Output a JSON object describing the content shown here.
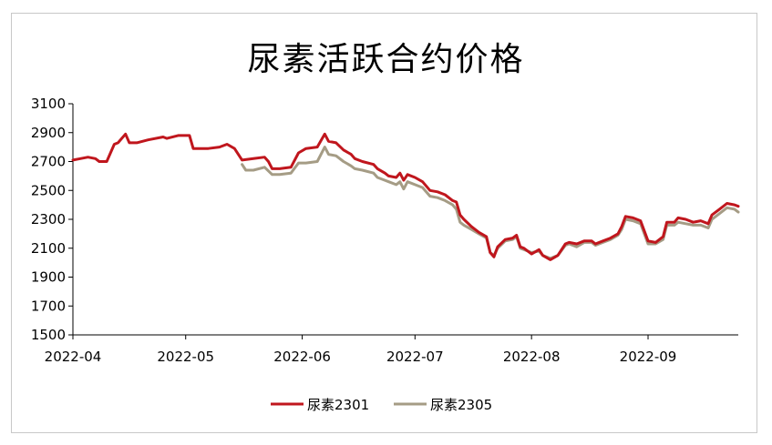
{
  "chart_data": {
    "type": "line",
    "title": "尿素活跃合约价格",
    "xlabel": "",
    "ylabel": "",
    "ylim": [
      1500,
      3100
    ],
    "yticks": [
      1500,
      1700,
      1900,
      2100,
      2300,
      2500,
      2700,
      2900,
      3100
    ],
    "xlim": [
      "2022-04-01",
      "2022-09-25"
    ],
    "xticks": [
      {
        "date": "2022-04-01",
        "label": "2022-04"
      },
      {
        "date": "2022-05-01",
        "label": "2022-05"
      },
      {
        "date": "2022-06-01",
        "label": "2022-06"
      },
      {
        "date": "2022-07-01",
        "label": "2022-07"
      },
      {
        "date": "2022-08-01",
        "label": "2022-08"
      },
      {
        "date": "2022-09-01",
        "label": "2022-09"
      }
    ],
    "grid": false,
    "legend_position": "bottom",
    "series": [
      {
        "name": "尿素2301",
        "color": "#c0161d",
        "points": [
          [
            "2022-04-01",
            2710
          ],
          [
            "2022-04-03",
            2720
          ],
          [
            "2022-04-05",
            2730
          ],
          [
            "2022-04-07",
            2720
          ],
          [
            "2022-04-08",
            2700
          ],
          [
            "2022-04-10",
            2700
          ],
          [
            "2022-04-12",
            2820
          ],
          [
            "2022-04-13",
            2830
          ],
          [
            "2022-04-15",
            2890
          ],
          [
            "2022-04-16",
            2830
          ],
          [
            "2022-04-18",
            2830
          ],
          [
            "2022-04-21",
            2850
          ],
          [
            "2022-04-25",
            2870
          ],
          [
            "2022-04-26",
            2860
          ],
          [
            "2022-04-29",
            2880
          ],
          [
            "2022-05-02",
            2880
          ],
          [
            "2022-05-03",
            2790
          ],
          [
            "2022-05-07",
            2790
          ],
          [
            "2022-05-10",
            2800
          ],
          [
            "2022-05-12",
            2820
          ],
          [
            "2022-05-14",
            2790
          ],
          [
            "2022-05-16",
            2710
          ],
          [
            "2022-05-19",
            2720
          ],
          [
            "2022-05-22",
            2730
          ],
          [
            "2022-05-23",
            2700
          ],
          [
            "2022-05-24",
            2650
          ],
          [
            "2022-05-26",
            2650
          ],
          [
            "2022-05-29",
            2660
          ],
          [
            "2022-05-31",
            2760
          ],
          [
            "2022-06-02",
            2790
          ],
          [
            "2022-06-05",
            2800
          ],
          [
            "2022-06-07",
            2890
          ],
          [
            "2022-06-08",
            2840
          ],
          [
            "2022-06-10",
            2830
          ],
          [
            "2022-06-12",
            2780
          ],
          [
            "2022-06-14",
            2750
          ],
          [
            "2022-06-15",
            2720
          ],
          [
            "2022-06-17",
            2700
          ],
          [
            "2022-06-20",
            2680
          ],
          [
            "2022-06-21",
            2650
          ],
          [
            "2022-06-23",
            2620
          ],
          [
            "2022-06-24",
            2600
          ],
          [
            "2022-06-26",
            2590
          ],
          [
            "2022-06-27",
            2620
          ],
          [
            "2022-06-28",
            2570
          ],
          [
            "2022-06-29",
            2610
          ],
          [
            "2022-07-01",
            2590
          ],
          [
            "2022-07-03",
            2560
          ],
          [
            "2022-07-05",
            2500
          ],
          [
            "2022-07-07",
            2490
          ],
          [
            "2022-07-09",
            2470
          ],
          [
            "2022-07-11",
            2430
          ],
          [
            "2022-07-12",
            2420
          ],
          [
            "2022-07-13",
            2330
          ],
          [
            "2022-07-14",
            2300
          ],
          [
            "2022-07-16",
            2250
          ],
          [
            "2022-07-18",
            2210
          ],
          [
            "2022-07-20",
            2180
          ],
          [
            "2022-07-21",
            2070
          ],
          [
            "2022-07-22",
            2040
          ],
          [
            "2022-07-23",
            2110
          ],
          [
            "2022-07-25",
            2160
          ],
          [
            "2022-07-27",
            2170
          ],
          [
            "2022-07-28",
            2190
          ],
          [
            "2022-07-29",
            2110
          ],
          [
            "2022-07-30",
            2100
          ],
          [
            "2022-08-01",
            2060
          ],
          [
            "2022-08-03",
            2090
          ],
          [
            "2022-08-04",
            2050
          ],
          [
            "2022-08-06",
            2020
          ],
          [
            "2022-08-08",
            2050
          ],
          [
            "2022-08-10",
            2130
          ],
          [
            "2022-08-11",
            2140
          ],
          [
            "2022-08-13",
            2130
          ],
          [
            "2022-08-15",
            2150
          ],
          [
            "2022-08-17",
            2150
          ],
          [
            "2022-08-18",
            2130
          ],
          [
            "2022-08-20",
            2150
          ],
          [
            "2022-08-22",
            2170
          ],
          [
            "2022-08-24",
            2200
          ],
          [
            "2022-08-25",
            2250
          ],
          [
            "2022-08-26",
            2320
          ],
          [
            "2022-08-28",
            2310
          ],
          [
            "2022-08-30",
            2290
          ],
          [
            "2022-09-01",
            2150
          ],
          [
            "2022-09-03",
            2140
          ],
          [
            "2022-09-05",
            2180
          ],
          [
            "2022-09-06",
            2280
          ],
          [
            "2022-09-08",
            2280
          ],
          [
            "2022-09-09",
            2310
          ],
          [
            "2022-09-11",
            2300
          ],
          [
            "2022-09-13",
            2280
          ],
          [
            "2022-09-15",
            2290
          ],
          [
            "2022-09-17",
            2270
          ],
          [
            "2022-09-18",
            2330
          ],
          [
            "2022-09-20",
            2370
          ],
          [
            "2022-09-22",
            2410
          ],
          [
            "2022-09-24",
            2400
          ],
          [
            "2022-09-25",
            2390
          ]
        ]
      },
      {
        "name": "尿素2305",
        "color": "#a59c85",
        "points": [
          [
            "2022-05-16",
            2680
          ],
          [
            "2022-05-17",
            2640
          ],
          [
            "2022-05-19",
            2640
          ],
          [
            "2022-05-22",
            2660
          ],
          [
            "2022-05-24",
            2610
          ],
          [
            "2022-05-26",
            2610
          ],
          [
            "2022-05-29",
            2620
          ],
          [
            "2022-05-31",
            2690
          ],
          [
            "2022-06-02",
            2690
          ],
          [
            "2022-06-05",
            2700
          ],
          [
            "2022-06-07",
            2800
          ],
          [
            "2022-06-08",
            2750
          ],
          [
            "2022-06-10",
            2740
          ],
          [
            "2022-06-12",
            2700
          ],
          [
            "2022-06-14",
            2670
          ],
          [
            "2022-06-15",
            2650
          ],
          [
            "2022-06-17",
            2640
          ],
          [
            "2022-06-20",
            2620
          ],
          [
            "2022-06-21",
            2590
          ],
          [
            "2022-06-23",
            2570
          ],
          [
            "2022-06-24",
            2560
          ],
          [
            "2022-06-26",
            2540
          ],
          [
            "2022-06-27",
            2560
          ],
          [
            "2022-06-28",
            2510
          ],
          [
            "2022-06-29",
            2560
          ],
          [
            "2022-07-01",
            2540
          ],
          [
            "2022-07-03",
            2520
          ],
          [
            "2022-07-05",
            2460
          ],
          [
            "2022-07-07",
            2450
          ],
          [
            "2022-07-09",
            2430
          ],
          [
            "2022-07-11",
            2400
          ],
          [
            "2022-07-12",
            2370
          ],
          [
            "2022-07-13",
            2280
          ],
          [
            "2022-07-14",
            2260
          ],
          [
            "2022-07-16",
            2230
          ],
          [
            "2022-07-18",
            2200
          ],
          [
            "2022-07-20",
            2170
          ],
          [
            "2022-07-21",
            2070
          ],
          [
            "2022-07-22",
            2050
          ],
          [
            "2022-07-23",
            2100
          ],
          [
            "2022-07-25",
            2150
          ],
          [
            "2022-07-27",
            2160
          ],
          [
            "2022-07-28",
            2180
          ],
          [
            "2022-07-29",
            2100
          ],
          [
            "2022-07-30",
            2090
          ],
          [
            "2022-08-01",
            2070
          ],
          [
            "2022-08-03",
            2080
          ],
          [
            "2022-08-04",
            2050
          ],
          [
            "2022-08-06",
            2030
          ],
          [
            "2022-08-08",
            2050
          ],
          [
            "2022-08-10",
            2120
          ],
          [
            "2022-08-11",
            2130
          ],
          [
            "2022-08-13",
            2110
          ],
          [
            "2022-08-15",
            2140
          ],
          [
            "2022-08-17",
            2140
          ],
          [
            "2022-08-18",
            2120
          ],
          [
            "2022-08-20",
            2140
          ],
          [
            "2022-08-22",
            2160
          ],
          [
            "2022-08-24",
            2190
          ],
          [
            "2022-08-25",
            2230
          ],
          [
            "2022-08-26",
            2300
          ],
          [
            "2022-08-28",
            2290
          ],
          [
            "2022-08-30",
            2270
          ],
          [
            "2022-09-01",
            2130
          ],
          [
            "2022-09-03",
            2130
          ],
          [
            "2022-09-05",
            2160
          ],
          [
            "2022-09-06",
            2260
          ],
          [
            "2022-09-08",
            2260
          ],
          [
            "2022-09-09",
            2280
          ],
          [
            "2022-09-11",
            2270
          ],
          [
            "2022-09-13",
            2260
          ],
          [
            "2022-09-15",
            2260
          ],
          [
            "2022-09-17",
            2240
          ],
          [
            "2022-09-18",
            2300
          ],
          [
            "2022-09-20",
            2340
          ],
          [
            "2022-09-22",
            2380
          ],
          [
            "2022-09-24",
            2370
          ],
          [
            "2022-09-25",
            2350
          ]
        ]
      }
    ]
  }
}
